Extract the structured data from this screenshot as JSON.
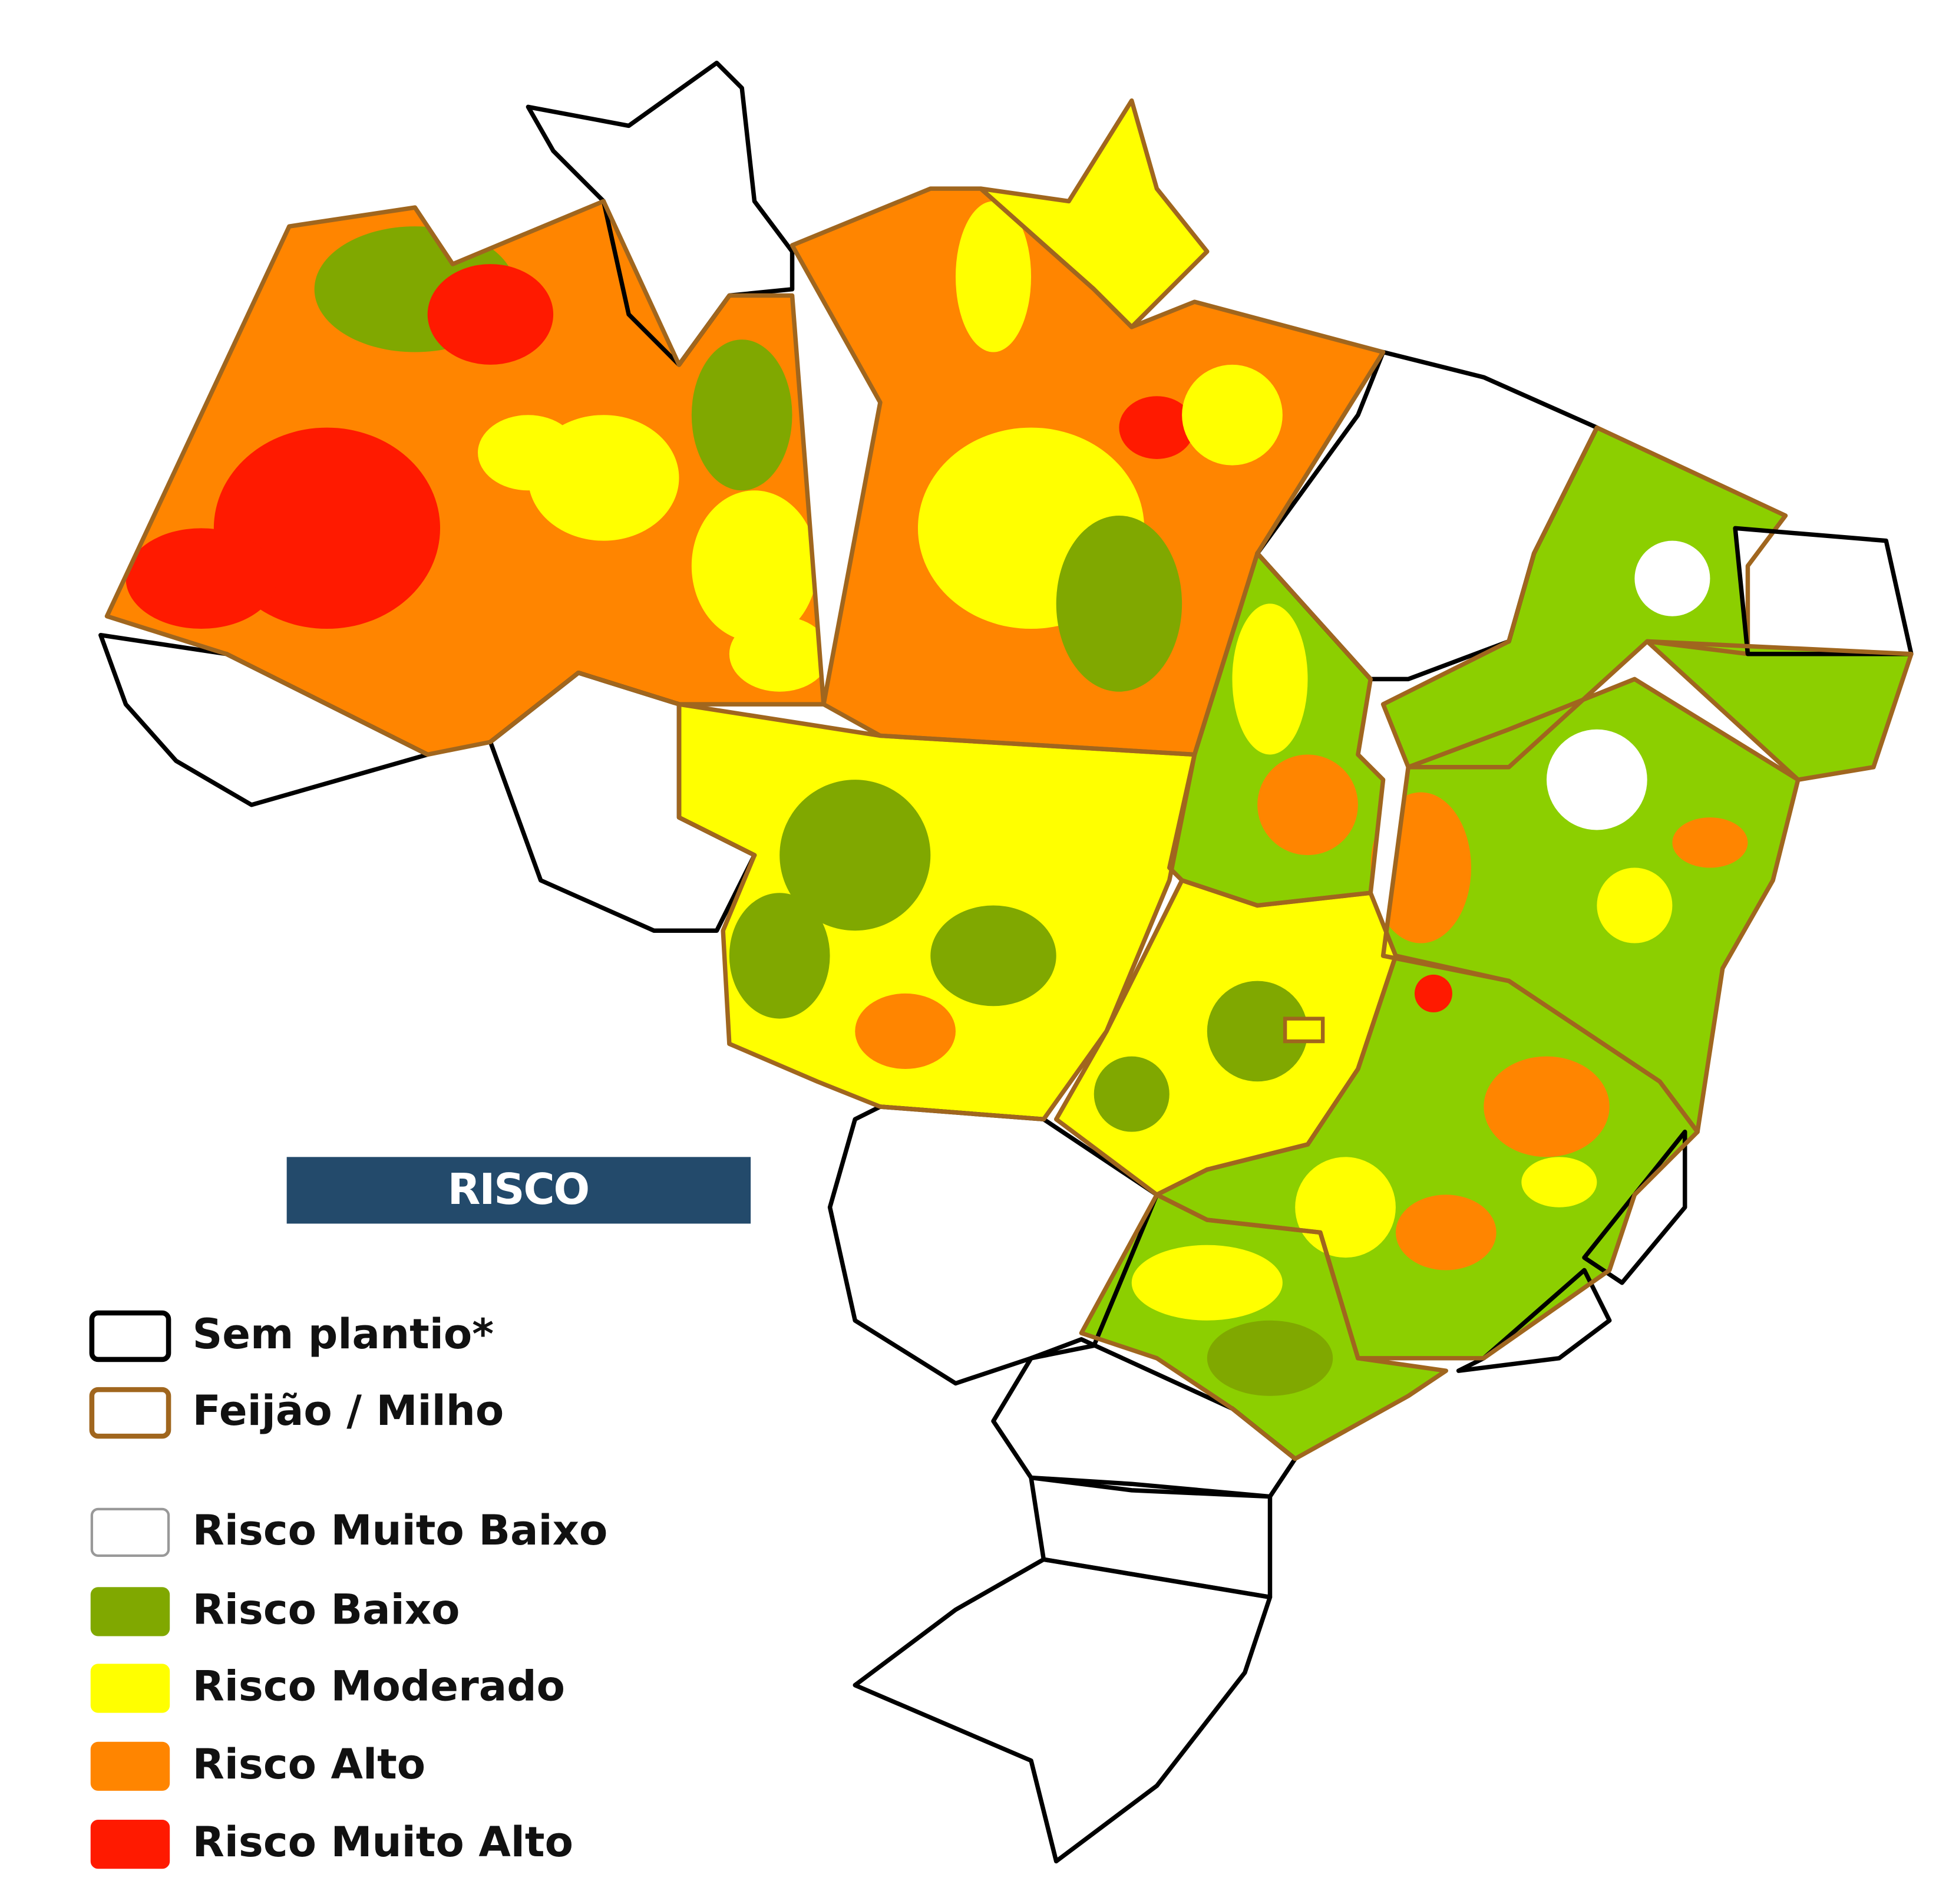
{
  "legend": {
    "title": "RISCO",
    "items": [
      {
        "label": "Sem plantio*",
        "fill": "#ffffff",
        "stroke": "#000000"
      },
      {
        "label": "Feijão / Milho",
        "fill": "#ffffff",
        "stroke": "#a0661e"
      },
      {
        "label": "Risco Muito Baixo",
        "fill": "#ffffff",
        "stroke": "#999999"
      },
      {
        "label": "Risco Baixo",
        "fill": "#80a800",
        "stroke": "#80a800"
      },
      {
        "label": "Risco Moderado",
        "fill": "#ffff00",
        "stroke": "#ffff00"
      },
      {
        "label": "Risco Alto",
        "fill": "#ff8500",
        "stroke": "#ff8500"
      },
      {
        "label": "Risco Muito Alto",
        "fill": "#ff1a00",
        "stroke": "#ff1a00"
      }
    ]
  }
}
